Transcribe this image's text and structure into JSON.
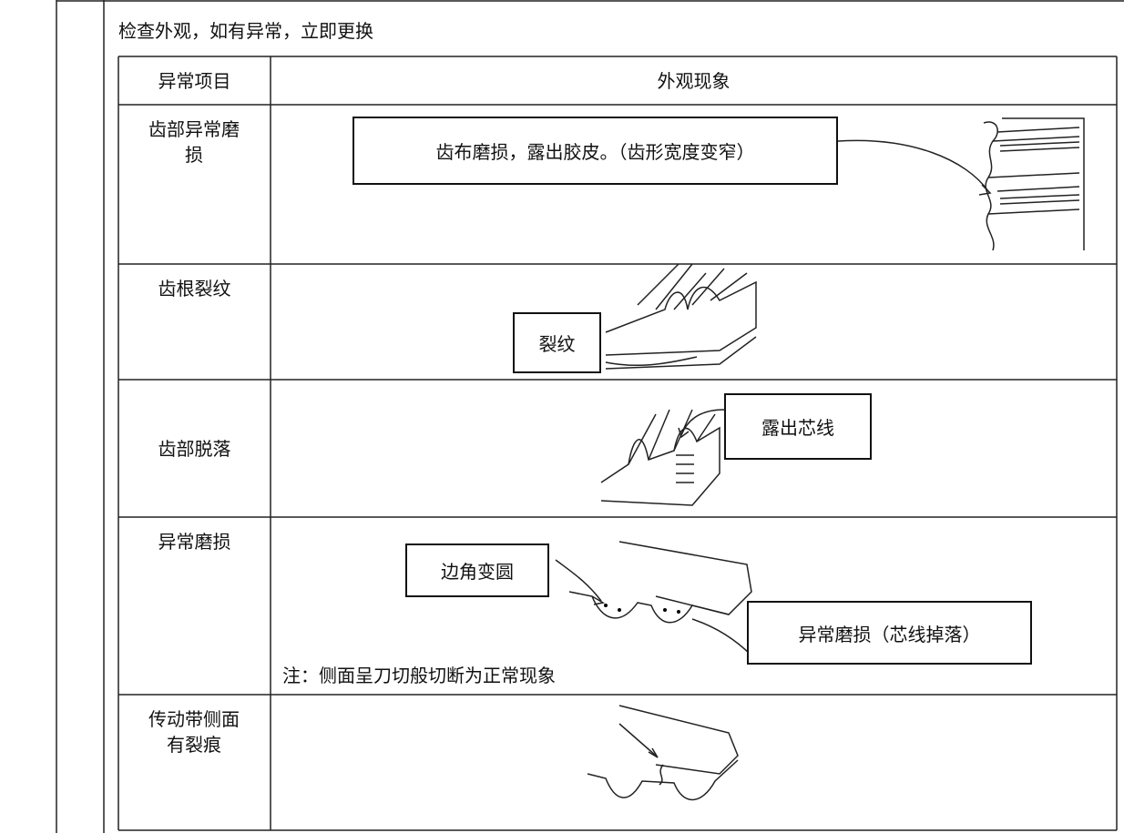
{
  "instruction": "检查外观，如有异常，立即更换",
  "table": {
    "header": [
      "异常项目",
      "外观现象"
    ],
    "rows": [
      {
        "item": "齿部异常磨损",
        "labels": [
          "齿布磨损，露出胶皮。（齿形宽度变窄）"
        ]
      },
      {
        "item": "齿根裂纹",
        "labels": [
          "裂纹"
        ]
      },
      {
        "item": "齿部脱落",
        "labels": [
          "露出芯线"
        ]
      },
      {
        "item": "异常磨损",
        "labels": [
          "边角变圆",
          "异常磨损（芯线掉落）"
        ],
        "note": "注：侧面呈刀切般切断为正常现象"
      },
      {
        "item": "传动带侧面有裂痕",
        "labels": []
      }
    ]
  }
}
